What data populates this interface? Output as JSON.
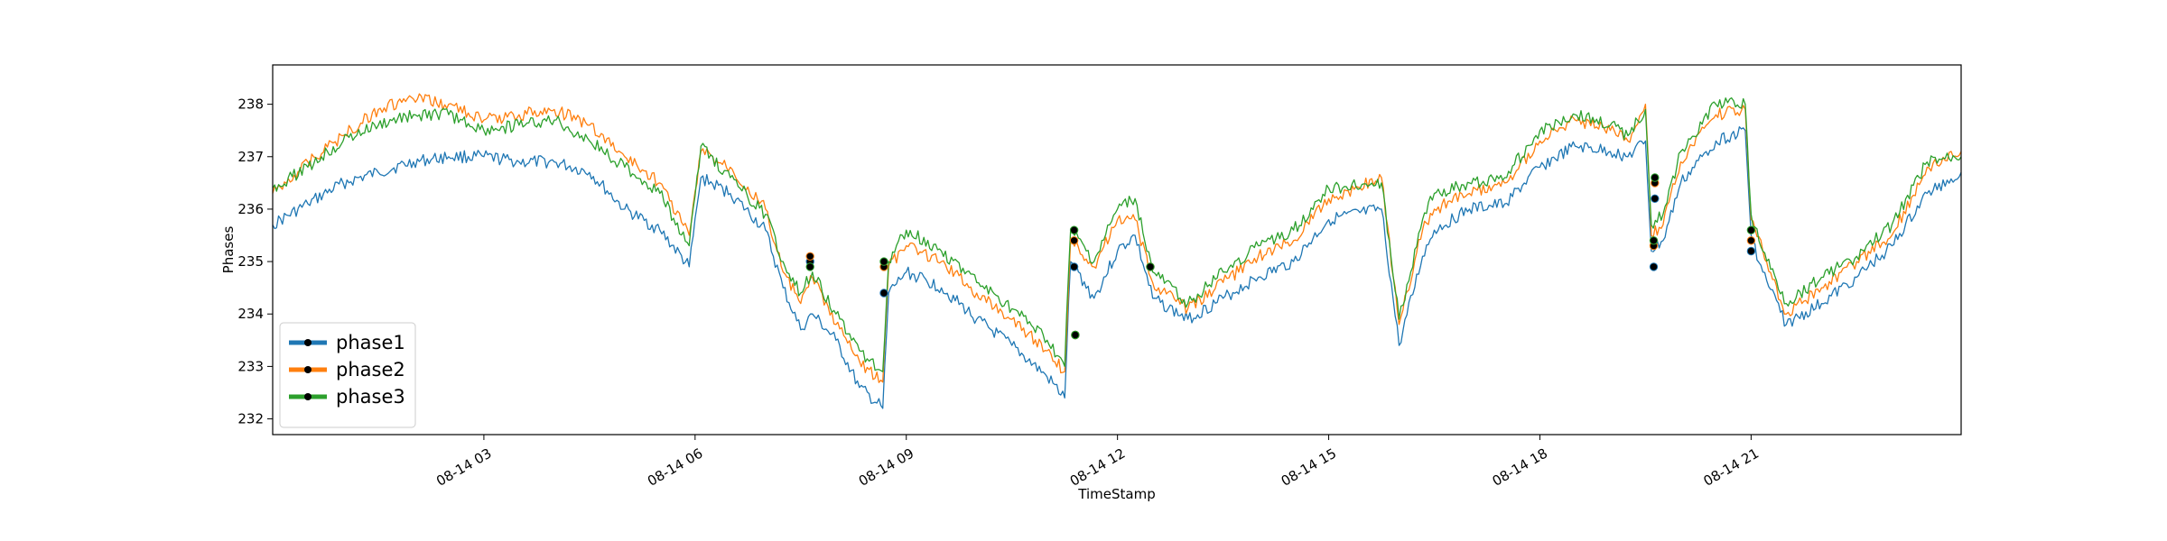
{
  "chart_data": {
    "type": "line",
    "xlabel": "TimeStamp",
    "ylabel": "Phases",
    "grid": false,
    "legend_position": "lower-left",
    "xlim": [
      "2020-08-14T00:00",
      "2020-08-14T23:59"
    ],
    "ylim": [
      231.7,
      238.75
    ],
    "x_ticks": [
      {
        "value": "2020-08-14T03:00",
        "label": "08-14 03"
      },
      {
        "value": "2020-08-14T06:00",
        "label": "08-14 06"
      },
      {
        "value": "2020-08-14T09:00",
        "label": "08-14 09"
      },
      {
        "value": "2020-08-14T12:00",
        "label": "08-14 12"
      },
      {
        "value": "2020-08-14T15:00",
        "label": "08-14 15"
      },
      {
        "value": "2020-08-14T18:00",
        "label": "08-14 18"
      },
      {
        "value": "2020-08-14T21:00",
        "label": "08-14 21"
      }
    ],
    "y_ticks": [
      {
        "value": 232,
        "label": "232"
      },
      {
        "value": 233,
        "label": "233"
      },
      {
        "value": 234,
        "label": "234"
      },
      {
        "value": 235,
        "label": "235"
      },
      {
        "value": 236,
        "label": "236"
      },
      {
        "value": 237,
        "label": "237"
      },
      {
        "value": 238,
        "label": "238"
      }
    ],
    "x": [
      "2020-08-14T00:00",
      "2020-08-14T00:30",
      "2020-08-14T01:00",
      "2020-08-14T01:30",
      "2020-08-14T02:00",
      "2020-08-14T02:30",
      "2020-08-14T03:00",
      "2020-08-14T03:30",
      "2020-08-14T04:00",
      "2020-08-14T04:30",
      "2020-08-14T05:00",
      "2020-08-14T05:30",
      "2020-08-14T05:55",
      "2020-08-14T06:05",
      "2020-08-14T06:30",
      "2020-08-14T07:00",
      "2020-08-14T07:15",
      "2020-08-14T07:30",
      "2020-08-14T07:40",
      "2020-08-14T08:00",
      "2020-08-14T08:20",
      "2020-08-14T08:40",
      "2020-08-14T08:45",
      "2020-08-14T09:00",
      "2020-08-14T09:30",
      "2020-08-14T10:00",
      "2020-08-14T10:30",
      "2020-08-14T11:00",
      "2020-08-14T11:15",
      "2020-08-14T11:20",
      "2020-08-14T11:40",
      "2020-08-14T12:00",
      "2020-08-14T12:15",
      "2020-08-14T12:30",
      "2020-08-14T13:00",
      "2020-08-14T13:30",
      "2020-08-14T14:00",
      "2020-08-14T14:30",
      "2020-08-14T15:00",
      "2020-08-14T15:45",
      "2020-08-14T16:00",
      "2020-08-14T16:20",
      "2020-08-14T16:30",
      "2020-08-14T17:00",
      "2020-08-14T17:30",
      "2020-08-14T18:00",
      "2020-08-14T18:30",
      "2020-08-14T19:00",
      "2020-08-14T19:15",
      "2020-08-14T19:30",
      "2020-08-14T19:35",
      "2020-08-14T19:45",
      "2020-08-14T20:00",
      "2020-08-14T20:30",
      "2020-08-14T20:55",
      "2020-08-14T21:00",
      "2020-08-14T21:10",
      "2020-08-14T21:30",
      "2020-08-14T22:00",
      "2020-08-14T22:30",
      "2020-08-14T23:00",
      "2020-08-14T23:30",
      "2020-08-14T23:59"
    ],
    "series": [
      {
        "name": "phase1",
        "color": "#1f77b4",
        "values": [
          235.7,
          236.1,
          236.5,
          236.7,
          236.9,
          237.0,
          237.0,
          236.9,
          236.9,
          236.7,
          236.0,
          235.6,
          234.9,
          236.6,
          236.3,
          235.6,
          234.5,
          233.7,
          234.0,
          233.5,
          232.6,
          232.2,
          234.4,
          234.8,
          234.5,
          233.9,
          233.4,
          232.8,
          232.4,
          235.0,
          234.3,
          235.2,
          235.5,
          234.3,
          233.9,
          234.3,
          234.7,
          235.0,
          235.8,
          236.0,
          233.4,
          235.1,
          235.6,
          236.0,
          236.1,
          236.8,
          237.2,
          237.1,
          237.0,
          237.3,
          235.2,
          235.4,
          236.5,
          237.3,
          237.5,
          235.5,
          234.8,
          233.8,
          234.2,
          234.7,
          235.3,
          236.3,
          236.7
        ]
      },
      {
        "name": "phase2",
        "color": "#ff7f0e",
        "values": [
          236.3,
          236.9,
          237.4,
          237.9,
          238.1,
          238.0,
          237.7,
          237.8,
          237.9,
          237.6,
          237.0,
          236.5,
          235.5,
          237.1,
          236.8,
          236.0,
          234.8,
          234.2,
          234.7,
          233.8,
          233.1,
          232.7,
          234.9,
          235.3,
          235.0,
          234.4,
          233.9,
          233.3,
          232.9,
          235.4,
          234.9,
          235.8,
          235.8,
          234.6,
          234.1,
          234.6,
          235.1,
          235.4,
          236.2,
          236.6,
          233.8,
          235.6,
          236.0,
          236.3,
          236.5,
          237.3,
          237.7,
          237.5,
          237.3,
          238.0,
          235.5,
          235.7,
          236.9,
          237.8,
          237.9,
          235.8,
          235.2,
          234.0,
          234.5,
          235.0,
          235.5,
          236.8,
          237.1
        ]
      },
      {
        "name": "phase3",
        "color": "#2ca02c",
        "values": [
          236.4,
          236.8,
          237.3,
          237.6,
          237.8,
          237.8,
          237.5,
          237.6,
          237.7,
          237.3,
          236.8,
          236.3,
          235.3,
          237.2,
          236.6,
          235.9,
          235.0,
          234.4,
          234.8,
          234.0,
          233.3,
          232.9,
          235.0,
          235.6,
          235.2,
          234.6,
          234.1,
          233.5,
          233.0,
          235.6,
          235.0,
          236.0,
          236.2,
          234.8,
          234.2,
          234.8,
          235.3,
          235.6,
          236.4,
          236.5,
          233.9,
          235.8,
          236.3,
          236.5,
          236.6,
          237.5,
          237.8,
          237.6,
          237.4,
          237.9,
          235.7,
          235.9,
          237.1,
          238.0,
          238.0,
          235.9,
          235.2,
          234.2,
          234.7,
          235.1,
          235.7,
          236.9,
          237.0
        ]
      }
    ],
    "marker_points": [
      {
        "x": "2020-08-14T07:38",
        "values": [
          235.0,
          235.1,
          234.9
        ]
      },
      {
        "x": "2020-08-14T08:41",
        "values": [
          234.4,
          234.9,
          235.0
        ]
      },
      {
        "x": "2020-08-14T11:23",
        "values": [
          234.9,
          235.4,
          235.6
        ]
      },
      {
        "x": "2020-08-14T11:24",
        "values": [
          233.6,
          233.6,
          233.6
        ]
      },
      {
        "x": "2020-08-14T12:28",
        "values": [
          234.9,
          234.9,
          234.9
        ]
      },
      {
        "x": "2020-08-14T19:37",
        "values": [
          234.9,
          235.3,
          235.4
        ]
      },
      {
        "x": "2020-08-14T19:38",
        "values": [
          236.2,
          236.5,
          236.6
        ]
      },
      {
        "x": "2020-08-14T21:00",
        "values": [
          235.2,
          235.4,
          235.6
        ]
      }
    ],
    "legend": [
      {
        "label": "phase1",
        "color": "#1f77b4"
      },
      {
        "label": "phase2",
        "color": "#ff7f0e"
      },
      {
        "label": "phase3",
        "color": "#2ca02c"
      }
    ]
  }
}
